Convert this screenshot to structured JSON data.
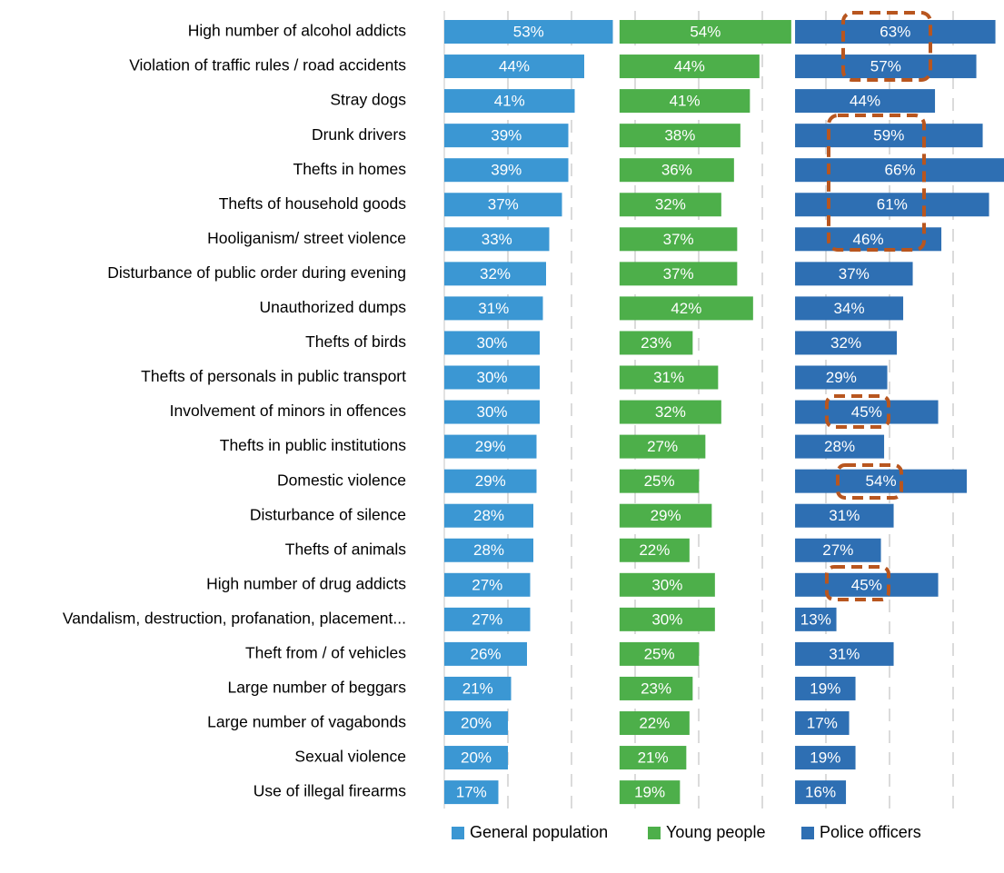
{
  "chart_data": {
    "type": "bar",
    "categories": [
      "High number of alcohol addicts",
      "Violation of traffic rules / road accidents",
      "Stray dogs",
      "Drunk drivers",
      "Thefts in homes",
      "Thefts of household goods",
      "Hooliganism/ street violence",
      "Disturbance of public order during evening",
      "Unauthorized dumps",
      "Thefts of birds",
      "Thefts of personals in public transport",
      "Involvement of minors in offences",
      "Thefts in public institutions",
      "Domestic violence",
      "Disturbance of silence",
      "Thefts of animals",
      "High number of drug addicts",
      "Vandalism, destruction, profanation, placement...",
      "Theft from / of vehicles",
      "Large number of beggars",
      "Large number of vagabonds",
      "Sexual violence",
      "Use of illegal firearms"
    ],
    "series": [
      {
        "name": "General population",
        "color": "#3b97d3",
        "values": [
          53,
          44,
          41,
          39,
          39,
          37,
          33,
          32,
          31,
          30,
          30,
          30,
          29,
          29,
          28,
          28,
          27,
          27,
          26,
          21,
          20,
          20,
          17
        ],
        "value_labels": [
          "53%",
          "44%",
          "41%",
          "39%",
          "39%",
          "37%",
          "33%",
          "32%",
          "31%",
          "30%",
          "30%",
          "30%",
          "29%",
          "29%",
          "28%",
          "28%",
          "27%",
          "27%",
          "26%",
          "21%",
          "20%",
          "20%",
          "17%"
        ]
      },
      {
        "name": "Young people",
        "color": "#4daf4a",
        "values": [
          54,
          44,
          41,
          38,
          36,
          32,
          37,
          37,
          42,
          23,
          31,
          32,
          27,
          25,
          29,
          22,
          30,
          30,
          25,
          23,
          22,
          21,
          19
        ],
        "value_labels": [
          "54%",
          "44%",
          "41%",
          "38%",
          "36%",
          "32%",
          "37%",
          "37%",
          "42%",
          "23%",
          "31%",
          "32%",
          "27%",
          "25%",
          "29%",
          "22%",
          "30%",
          "30%",
          "25%",
          "23%",
          "22%",
          "21%",
          "19%"
        ]
      },
      {
        "name": "Police officers",
        "color": "#2e6fb3",
        "values": [
          63,
          57,
          44,
          59,
          66,
          61,
          46,
          37,
          34,
          32,
          29,
          45,
          28,
          54,
          31,
          27,
          45,
          13,
          31,
          19,
          17,
          19,
          16
        ],
        "value_labels": [
          "63%",
          "57%",
          "44%",
          "59%",
          "66%",
          "61%",
          "46%",
          "37%",
          "34%",
          "32%",
          "29%",
          "45%",
          "28%",
          "54%",
          "31%",
          "27%",
          "45%",
          "13%",
          "31%",
          "19%",
          "17%",
          "19%",
          "16%"
        ]
      }
    ],
    "xlim": [
      0,
      176
    ],
    "xticks": [
      20,
      40,
      60,
      80,
      100,
      120,
      140,
      160
    ],
    "grid": true,
    "legend": "bottom"
  }
}
